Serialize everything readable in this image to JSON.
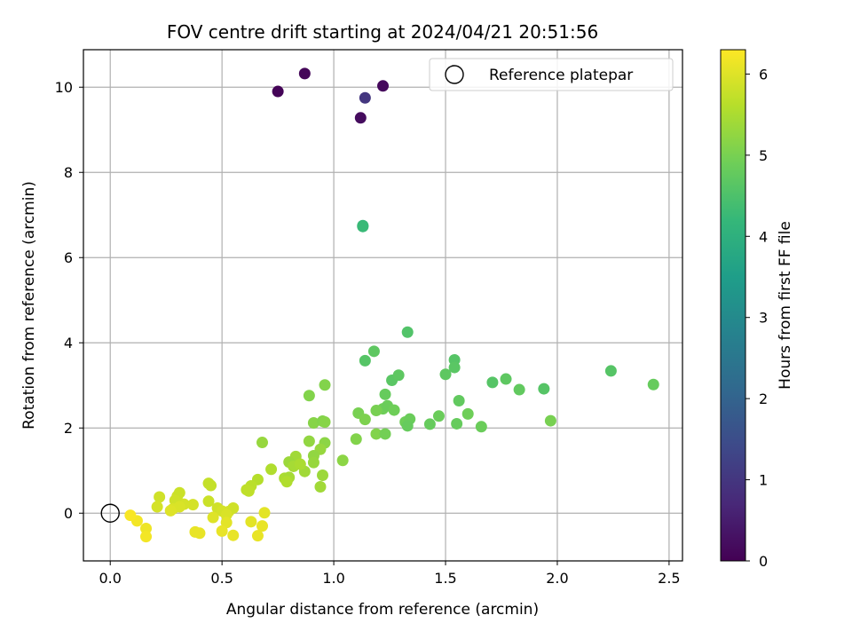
{
  "chart_data": {
    "type": "scatter",
    "title": "FOV centre drift starting at 2024/04/21 20:51:56",
    "xlabel": "Angular distance from reference (arcmin)",
    "ylabel": "Rotation from reference (arcmin)",
    "xlim": [
      -0.12,
      2.56
    ],
    "ylim": [
      -1.12,
      10.88
    ],
    "xticks": [
      "0.0",
      "0.5",
      "1.0",
      "1.5",
      "2.0",
      "2.5"
    ],
    "xtick_values": [
      0,
      0.5,
      1.0,
      1.5,
      2.0,
      2.5
    ],
    "yticks": [
      "0",
      "2",
      "4",
      "6",
      "8",
      "10"
    ],
    "ytick_values": [
      0,
      2,
      4,
      6,
      8,
      10
    ],
    "grid": true,
    "colormap": "viridis",
    "colorbar": {
      "label": "Hours from first FF file",
      "range": [
        0,
        6.3
      ],
      "ticks": [
        "0",
        "1",
        "2",
        "3",
        "4",
        "5",
        "6"
      ],
      "tick_values": [
        0,
        1,
        2,
        3,
        4,
        5,
        6
      ]
    },
    "legend": {
      "label": "Reference platepar",
      "location": "upper-right"
    },
    "reference_point": {
      "x": 0,
      "y": 0
    },
    "points": [
      {
        "x": 0.75,
        "y": 9.9,
        "h": 0.05
      },
      {
        "x": 0.87,
        "y": 10.32,
        "h": 0.1
      },
      {
        "x": 1.22,
        "y": 10.03,
        "h": 0.15
      },
      {
        "x": 1.14,
        "y": 9.75,
        "h": 1.0
      },
      {
        "x": 1.12,
        "y": 9.28,
        "h": 0.2
      },
      {
        "x": 1.13,
        "y": 6.75,
        "h": 4.2
      },
      {
        "x": 1.13,
        "y": 6.73,
        "h": 4.25
      },
      {
        "x": 1.33,
        "y": 4.25,
        "h": 4.55
      },
      {
        "x": 1.14,
        "y": 3.58,
        "h": 4.6
      },
      {
        "x": 1.18,
        "y": 3.8,
        "h": 4.7
      },
      {
        "x": 1.26,
        "y": 3.12,
        "h": 4.65
      },
      {
        "x": 1.29,
        "y": 3.24,
        "h": 4.7
      },
      {
        "x": 1.54,
        "y": 3.6,
        "h": 4.6
      },
      {
        "x": 1.54,
        "y": 3.42,
        "h": 4.65
      },
      {
        "x": 1.5,
        "y": 3.26,
        "h": 4.7
      },
      {
        "x": 1.56,
        "y": 2.64,
        "h": 4.75
      },
      {
        "x": 1.71,
        "y": 3.07,
        "h": 4.6
      },
      {
        "x": 1.77,
        "y": 3.15,
        "h": 4.7
      },
      {
        "x": 1.83,
        "y": 2.9,
        "h": 4.75
      },
      {
        "x": 1.94,
        "y": 2.92,
        "h": 4.6
      },
      {
        "x": 2.24,
        "y": 3.34,
        "h": 4.6
      },
      {
        "x": 2.43,
        "y": 3.02,
        "h": 4.8
      },
      {
        "x": 1.97,
        "y": 2.17,
        "h": 5.0
      },
      {
        "x": 1.6,
        "y": 2.33,
        "h": 4.9
      },
      {
        "x": 1.66,
        "y": 2.03,
        "h": 4.85
      },
      {
        "x": 1.55,
        "y": 2.1,
        "h": 4.8
      },
      {
        "x": 1.47,
        "y": 2.28,
        "h": 4.85
      },
      {
        "x": 1.43,
        "y": 2.09,
        "h": 4.8
      },
      {
        "x": 1.23,
        "y": 2.79,
        "h": 4.8
      },
      {
        "x": 1.22,
        "y": 2.45,
        "h": 4.9
      },
      {
        "x": 1.24,
        "y": 2.52,
        "h": 4.85
      },
      {
        "x": 1.27,
        "y": 2.42,
        "h": 4.9
      },
      {
        "x": 1.19,
        "y": 2.41,
        "h": 5.0
      },
      {
        "x": 1.11,
        "y": 2.35,
        "h": 5.0
      },
      {
        "x": 1.14,
        "y": 2.2,
        "h": 5.05
      },
      {
        "x": 1.32,
        "y": 2.14,
        "h": 4.9
      },
      {
        "x": 1.34,
        "y": 2.21,
        "h": 4.85
      },
      {
        "x": 1.33,
        "y": 2.05,
        "h": 4.8
      },
      {
        "x": 1.19,
        "y": 1.86,
        "h": 5.1
      },
      {
        "x": 1.23,
        "y": 1.86,
        "h": 4.95
      },
      {
        "x": 1.1,
        "y": 1.74,
        "h": 5.1
      },
      {
        "x": 1.04,
        "y": 1.24,
        "h": 5.2
      },
      {
        "x": 0.96,
        "y": 3.01,
        "h": 5.1
      },
      {
        "x": 0.89,
        "y": 2.76,
        "h": 5.1
      },
      {
        "x": 0.91,
        "y": 2.12,
        "h": 5.15
      },
      {
        "x": 0.95,
        "y": 2.16,
        "h": 5.1
      },
      {
        "x": 0.96,
        "y": 2.14,
        "h": 5.15
      },
      {
        "x": 0.89,
        "y": 1.69,
        "h": 5.25
      },
      {
        "x": 0.96,
        "y": 1.65,
        "h": 5.2
      },
      {
        "x": 0.94,
        "y": 1.5,
        "h": 5.3
      },
      {
        "x": 0.91,
        "y": 1.35,
        "h": 5.25
      },
      {
        "x": 0.91,
        "y": 1.19,
        "h": 5.3
      },
      {
        "x": 0.95,
        "y": 0.89,
        "h": 5.35
      },
      {
        "x": 0.94,
        "y": 0.62,
        "h": 5.4
      },
      {
        "x": 0.87,
        "y": 0.98,
        "h": 5.4
      },
      {
        "x": 0.83,
        "y": 1.33,
        "h": 5.4
      },
      {
        "x": 0.8,
        "y": 1.2,
        "h": 5.35
      },
      {
        "x": 0.82,
        "y": 1.1,
        "h": 5.45
      },
      {
        "x": 0.85,
        "y": 1.15,
        "h": 5.5
      },
      {
        "x": 0.78,
        "y": 0.82,
        "h": 5.5
      },
      {
        "x": 0.8,
        "y": 0.84,
        "h": 5.45
      },
      {
        "x": 0.79,
        "y": 0.74,
        "h": 5.55
      },
      {
        "x": 0.72,
        "y": 1.03,
        "h": 5.55
      },
      {
        "x": 0.68,
        "y": 1.66,
        "h": 5.3
      },
      {
        "x": 0.66,
        "y": 0.79,
        "h": 5.6
      },
      {
        "x": 0.63,
        "y": 0.64,
        "h": 5.65
      },
      {
        "x": 0.61,
        "y": 0.55,
        "h": 5.7
      },
      {
        "x": 0.62,
        "y": 0.52,
        "h": 5.7
      },
      {
        "x": 0.44,
        "y": 0.7,
        "h": 5.75
      },
      {
        "x": 0.45,
        "y": 0.65,
        "h": 5.75
      },
      {
        "x": 0.44,
        "y": 0.28,
        "h": 5.8
      },
      {
        "x": 0.48,
        "y": 0.12,
        "h": 5.85
      },
      {
        "x": 0.5,
        "y": 0.05,
        "h": 5.9
      },
      {
        "x": 0.53,
        "y": 0.04,
        "h": 5.9
      },
      {
        "x": 0.55,
        "y": 0.12,
        "h": 5.85
      },
      {
        "x": 0.52,
        "y": -0.04,
        "h": 5.95
      },
      {
        "x": 0.46,
        "y": -0.1,
        "h": 6.0
      },
      {
        "x": 0.52,
        "y": -0.22,
        "h": 6.05
      },
      {
        "x": 0.5,
        "y": -0.42,
        "h": 6.1
      },
      {
        "x": 0.55,
        "y": -0.52,
        "h": 6.1
      },
      {
        "x": 0.63,
        "y": -0.2,
        "h": 6.05
      },
      {
        "x": 0.66,
        "y": -0.53,
        "h": 6.1
      },
      {
        "x": 0.68,
        "y": -0.3,
        "h": 6.1
      },
      {
        "x": 0.69,
        "y": 0.01,
        "h": 6.05
      },
      {
        "x": 0.37,
        "y": 0.2,
        "h": 5.9
      },
      {
        "x": 0.33,
        "y": 0.21,
        "h": 5.9
      },
      {
        "x": 0.3,
        "y": 0.4,
        "h": 5.85
      },
      {
        "x": 0.31,
        "y": 0.48,
        "h": 5.8
      },
      {
        "x": 0.29,
        "y": 0.3,
        "h": 5.85
      },
      {
        "x": 0.31,
        "y": 0.15,
        "h": 5.95
      },
      {
        "x": 0.28,
        "y": 0.1,
        "h": 5.95
      },
      {
        "x": 0.22,
        "y": 0.38,
        "h": 5.85
      },
      {
        "x": 0.21,
        "y": 0.15,
        "h": 5.9
      },
      {
        "x": 0.27,
        "y": 0.06,
        "h": 6.0
      },
      {
        "x": 0.38,
        "y": -0.44,
        "h": 6.1
      },
      {
        "x": 0.4,
        "y": -0.47,
        "h": 6.1
      },
      {
        "x": 0.16,
        "y": -0.36,
        "h": 6.15
      },
      {
        "x": 0.16,
        "y": -0.55,
        "h": 6.2
      },
      {
        "x": 0.12,
        "y": -0.18,
        "h": 6.2
      },
      {
        "x": 0.09,
        "y": -0.05,
        "h": 6.25
      }
    ]
  }
}
